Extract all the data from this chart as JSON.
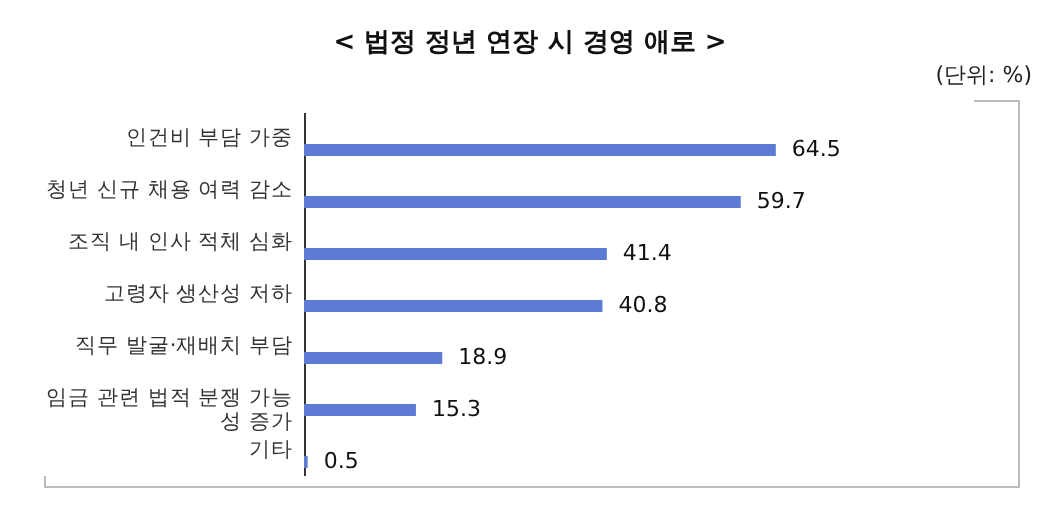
{
  "chart_data": {
    "type": "bar",
    "orientation": "horizontal",
    "title": "< 법정 정년 연장 시 경영 애로 >",
    "annotations": [
      "(단위: %)"
    ],
    "categories": [
      "인건비 부담 가중",
      "청년 신규 채용 여력 감소",
      "조직 내 인사 적체 심화",
      "고령자 생산성 저하",
      "직무 발굴·재배치 부담",
      "임금 관련 법적 분쟁 가능성 증가",
      "기타"
    ],
    "values": [
      64.5,
      59.7,
      41.4,
      40.8,
      18.9,
      15.3,
      0.5
    ],
    "color": "#5b7bd5",
    "data_labels": true,
    "grid": false
  }
}
